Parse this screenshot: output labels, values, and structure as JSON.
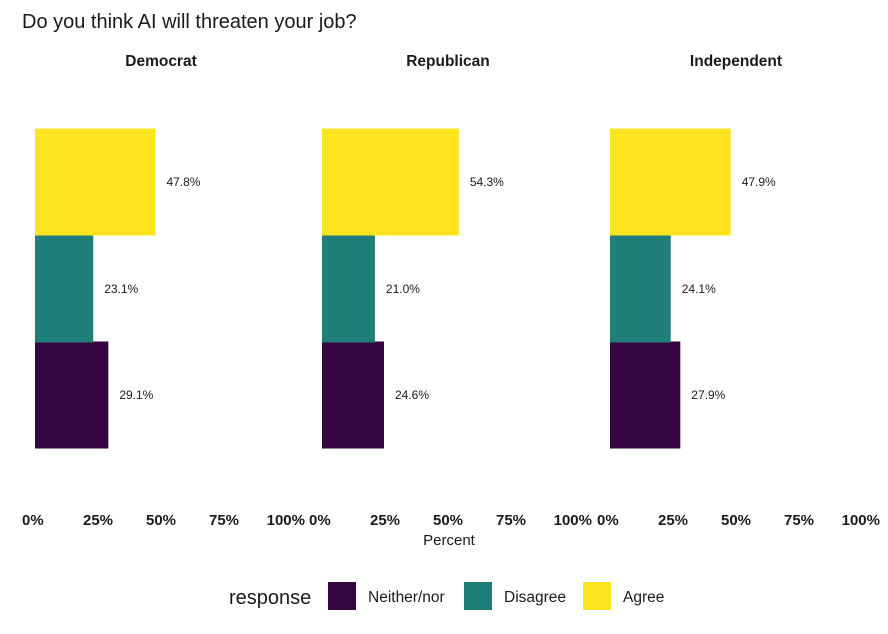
{
  "chart_data": {
    "type": "bar",
    "orientation": "horizontal-stacked-by-row",
    "title": "Do you think AI will threaten your job?",
    "xlabel": "Percent",
    "ylabel": "",
    "xlim": [
      0,
      100
    ],
    "x_ticks": [
      "0%",
      "25%",
      "50%",
      "75%",
      "100%"
    ],
    "categories": [
      "Neither/nor",
      "Disagree",
      "Agree"
    ],
    "facets": [
      {
        "name": "Democrat",
        "values": {
          "Neither/nor": 29.1,
          "Disagree": 23.1,
          "Agree": 47.8
        },
        "labels": {
          "Neither/nor": "29.1%",
          "Disagree": "23.1%",
          "Agree": "47.8%"
        }
      },
      {
        "name": "Republican",
        "values": {
          "Neither/nor": 24.6,
          "Disagree": 21.0,
          "Agree": 54.3
        },
        "labels": {
          "Neither/nor": "24.6%",
          "Disagree": "21.0%",
          "Agree": "54.3%"
        }
      },
      {
        "name": "Independent",
        "values": {
          "Neither/nor": 27.9,
          "Disagree": 24.1,
          "Agree": 47.9
        },
        "labels": {
          "Neither/nor": "27.9%",
          "Disagree": "24.1%",
          "Agree": "47.9%"
        }
      }
    ],
    "legend": {
      "title": "response",
      "position": "bottom",
      "entries": [
        {
          "name": "Neither/nor",
          "color": "#350542"
        },
        {
          "name": "Disagree",
          "color": "#1F7F79"
        },
        {
          "name": "Agree",
          "color": "#FDE41F"
        }
      ]
    },
    "grid": false
  }
}
